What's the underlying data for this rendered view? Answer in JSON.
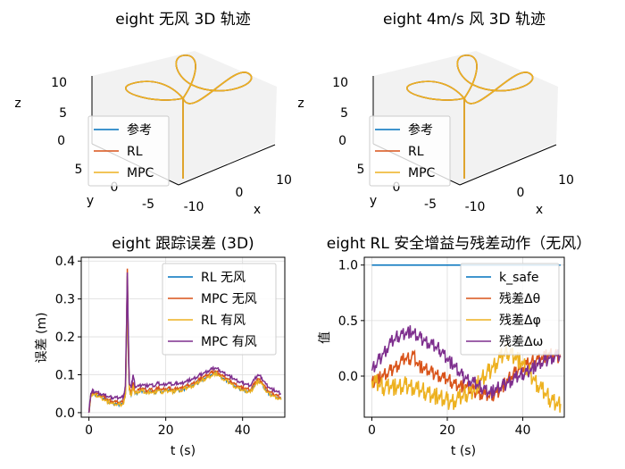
{
  "colors": {
    "ref": "#0072BD",
    "rl": "#D95319",
    "mpc": "#EDB120",
    "mpc_wind": "#7E2F8E"
  },
  "chart_data": [
    {
      "type": "line3d",
      "title": "eight 无风 3D 轨迹",
      "xlabel": "x",
      "ylabel": "y",
      "zlabel": "z",
      "x_ticks": [
        "-10",
        "0",
        "10"
      ],
      "y_ticks": [
        "-5",
        "0",
        "5"
      ],
      "z_ticks": [
        "0",
        "5",
        "10"
      ],
      "legend": [
        "参考",
        "RL",
        "MPC"
      ],
      "legend_position": "left",
      "grid": false
    },
    {
      "type": "line3d",
      "title": "eight 4m/s 风 3D 轨迹",
      "xlabel": "x",
      "ylabel": "y",
      "zlabel": "z",
      "x_ticks": [
        "-10",
        "0",
        "10"
      ],
      "y_ticks": [
        "-5",
        "0",
        "5"
      ],
      "z_ticks": [
        "0",
        "5",
        "10"
      ],
      "legend": [
        "参考",
        "RL",
        "MPC"
      ],
      "legend_position": "left",
      "grid": false
    },
    {
      "type": "line",
      "title": "eight 跟踪误差 (3D)",
      "xlabel": "t (s)",
      "ylabel": "误差 (m)",
      "xlim": [
        -2,
        51
      ],
      "ylim": [
        -0.012,
        0.41
      ],
      "x_ticks": [
        0,
        20,
        40
      ],
      "y_ticks": [
        0.0,
        0.1,
        0.2,
        0.3,
        0.4
      ],
      "y_tick_labels": [
        "0.0",
        "0.1",
        "0.2",
        "0.3",
        "0.4"
      ],
      "grid": true,
      "legend_position": "upper right",
      "x": [
        0,
        0.5,
        1,
        2,
        3,
        4,
        5,
        6,
        7,
        8,
        9,
        9.5,
        9.8,
        10,
        10.2,
        10.5,
        11,
        11.5,
        12,
        13,
        14,
        15,
        16,
        17,
        18,
        19,
        20,
        21,
        22,
        23,
        24,
        25,
        26,
        27,
        28,
        29,
        30,
        31,
        32,
        33,
        34,
        35,
        36,
        37,
        38,
        39,
        40,
        41,
        42,
        43,
        44,
        45,
        46,
        47,
        48,
        49,
        50
      ],
      "series": [
        {
          "name": "RL 无风",
          "values": [
            0,
            0.045,
            0.05,
            0.048,
            0.042,
            0.036,
            0.03,
            0.026,
            0.024,
            0.023,
            0.025,
            0.05,
            0.2,
            0.36,
            0.2,
            0.06,
            0.045,
            0.07,
            0.05,
            0.055,
            0.06,
            0.05,
            0.058,
            0.052,
            0.062,
            0.055,
            0.058,
            0.06,
            0.056,
            0.062,
            0.058,
            0.065,
            0.068,
            0.072,
            0.078,
            0.085,
            0.09,
            0.095,
            0.1,
            0.105,
            0.098,
            0.09,
            0.085,
            0.078,
            0.07,
            0.065,
            0.06,
            0.058,
            0.055,
            0.07,
            0.085,
            0.078,
            0.06,
            0.05,
            0.045,
            0.04,
            0.035
          ]
        },
        {
          "name": "MPC 无风",
          "values": [
            0,
            0.048,
            0.052,
            0.05,
            0.045,
            0.04,
            0.034,
            0.03,
            0.028,
            0.027,
            0.029,
            0.06,
            0.22,
            0.38,
            0.22,
            0.07,
            0.05,
            0.08,
            0.055,
            0.06,
            0.065,
            0.058,
            0.062,
            0.058,
            0.066,
            0.06,
            0.063,
            0.064,
            0.06,
            0.066,
            0.063,
            0.07,
            0.072,
            0.076,
            0.082,
            0.09,
            0.095,
            0.1,
            0.106,
            0.11,
            0.103,
            0.095,
            0.09,
            0.083,
            0.075,
            0.07,
            0.066,
            0.063,
            0.06,
            0.075,
            0.09,
            0.082,
            0.065,
            0.055,
            0.05,
            0.045,
            0.04
          ]
        },
        {
          "name": "RL 有风",
          "values": [
            0,
            0.044,
            0.048,
            0.046,
            0.04,
            0.034,
            0.028,
            0.024,
            0.022,
            0.021,
            0.023,
            0.05,
            0.2,
            0.36,
            0.2,
            0.06,
            0.045,
            0.068,
            0.05,
            0.055,
            0.058,
            0.05,
            0.056,
            0.05,
            0.06,
            0.054,
            0.057,
            0.058,
            0.055,
            0.06,
            0.057,
            0.064,
            0.067,
            0.07,
            0.076,
            0.083,
            0.088,
            0.093,
            0.098,
            0.103,
            0.096,
            0.088,
            0.083,
            0.076,
            0.068,
            0.064,
            0.059,
            0.057,
            0.054,
            0.068,
            0.083,
            0.076,
            0.058,
            0.048,
            0.044,
            0.039,
            0.034
          ]
        },
        {
          "name": "MPC 有风",
          "values": [
            0,
            0.052,
            0.056,
            0.055,
            0.05,
            0.046,
            0.042,
            0.04,
            0.04,
            0.04,
            0.042,
            0.07,
            0.24,
            0.37,
            0.24,
            0.08,
            0.065,
            0.1,
            0.07,
            0.07,
            0.075,
            0.07,
            0.074,
            0.07,
            0.078,
            0.073,
            0.076,
            0.077,
            0.073,
            0.079,
            0.076,
            0.082,
            0.085,
            0.088,
            0.093,
            0.1,
            0.105,
            0.11,
            0.115,
            0.118,
            0.112,
            0.105,
            0.1,
            0.094,
            0.087,
            0.082,
            0.078,
            0.075,
            0.072,
            0.086,
            0.1,
            0.092,
            0.076,
            0.066,
            0.06,
            0.055,
            0.05
          ]
        }
      ]
    },
    {
      "type": "line",
      "title": "eight RL 安全增益与残差动作（无风）",
      "xlabel": "t (s)",
      "ylabel": "值",
      "xlim": [
        -2,
        51
      ],
      "ylim": [
        -0.37,
        1.07
      ],
      "x_ticks": [
        0,
        20,
        40
      ],
      "y_ticks": [
        0.0,
        0.5,
        1.0
      ],
      "y_tick_labels": [
        "0.0",
        "0.5",
        "1.0"
      ],
      "grid": true,
      "legend_position": "upper right",
      "x": [
        0,
        1,
        2,
        3,
        4,
        5,
        6,
        7,
        8,
        9,
        10,
        11,
        12,
        13,
        14,
        15,
        16,
        17,
        18,
        19,
        20,
        21,
        22,
        23,
        24,
        25,
        26,
        27,
        28,
        29,
        30,
        31,
        32,
        33,
        34,
        35,
        36,
        37,
        38,
        39,
        40,
        41,
        42,
        43,
        44,
        45,
        46,
        47,
        48,
        49,
        50
      ],
      "series": [
        {
          "name": "k_safe",
          "values": [
            1.0,
            1.0,
            1.0,
            1.0,
            1.0,
            1.0,
            1.0,
            1.0,
            1.0,
            1.0,
            1.0,
            1.0,
            1.0,
            1.0,
            1.0,
            1.0,
            1.0,
            1.0,
            1.0,
            1.0,
            1.0,
            1.0,
            1.0,
            1.0,
            1.0,
            1.0,
            1.0,
            1.0,
            1.0,
            1.0,
            1.0,
            1.0,
            1.0,
            1.0,
            1.0,
            1.0,
            1.0,
            1.0,
            1.0,
            1.0,
            1.0,
            1.0,
            1.0,
            1.0,
            1.0,
            1.0,
            1.0,
            1.0,
            1.0,
            1.0,
            1.0
          ]
        },
        {
          "name": "残差Δθ",
          "values": [
            -0.05,
            -0.04,
            -0.02,
            0.0,
            0.02,
            0.05,
            0.08,
            0.1,
            0.14,
            0.16,
            0.15,
            0.2,
            0.12,
            0.08,
            0.06,
            0.05,
            0.03,
            0.02,
            0.0,
            -0.02,
            -0.03,
            -0.05,
            -0.07,
            -0.08,
            -0.09,
            -0.1,
            -0.12,
            -0.13,
            -0.15,
            -0.16,
            -0.17,
            -0.18,
            -0.17,
            -0.15,
            -0.12,
            -0.08,
            -0.04,
            0.0,
            0.03,
            0.06,
            0.08,
            0.1,
            0.12,
            0.14,
            0.15,
            0.17,
            0.18,
            0.19,
            0.19,
            0.18,
            0.17
          ]
        },
        {
          "name": "残差Δφ",
          "values": [
            -0.04,
            -0.06,
            -0.08,
            -0.1,
            -0.09,
            -0.08,
            -0.1,
            -0.11,
            -0.1,
            -0.08,
            -0.09,
            -0.1,
            -0.12,
            -0.13,
            -0.14,
            -0.15,
            -0.17,
            -0.18,
            -0.2,
            -0.21,
            -0.22,
            -0.23,
            -0.22,
            -0.2,
            -0.18,
            -0.16,
            -0.14,
            -0.12,
            -0.08,
            -0.04,
            0.0,
            0.04,
            0.08,
            0.12,
            0.16,
            0.2,
            0.22,
            0.2,
            0.18,
            0.14,
            0.1,
            0.06,
            0.02,
            -0.03,
            -0.08,
            -0.12,
            -0.16,
            -0.2,
            -0.22,
            -0.24,
            -0.25
          ]
        },
        {
          "name": "残差Δω",
          "values": [
            0.05,
            0.1,
            0.15,
            0.2,
            0.25,
            0.3,
            0.33,
            0.36,
            0.38,
            0.39,
            0.4,
            0.38,
            0.36,
            0.34,
            0.32,
            0.3,
            0.28,
            0.26,
            0.24,
            0.2,
            0.16,
            0.12,
            0.08,
            0.04,
            0.0,
            -0.02,
            -0.04,
            -0.06,
            -0.08,
            -0.1,
            -0.12,
            -0.14,
            -0.14,
            -0.12,
            -0.1,
            -0.08,
            -0.06,
            -0.04,
            -0.02,
            0.0,
            0.02,
            0.04,
            0.06,
            0.08,
            0.1,
            0.12,
            0.14,
            0.16,
            0.17,
            0.18,
            0.18
          ]
        }
      ]
    }
  ]
}
